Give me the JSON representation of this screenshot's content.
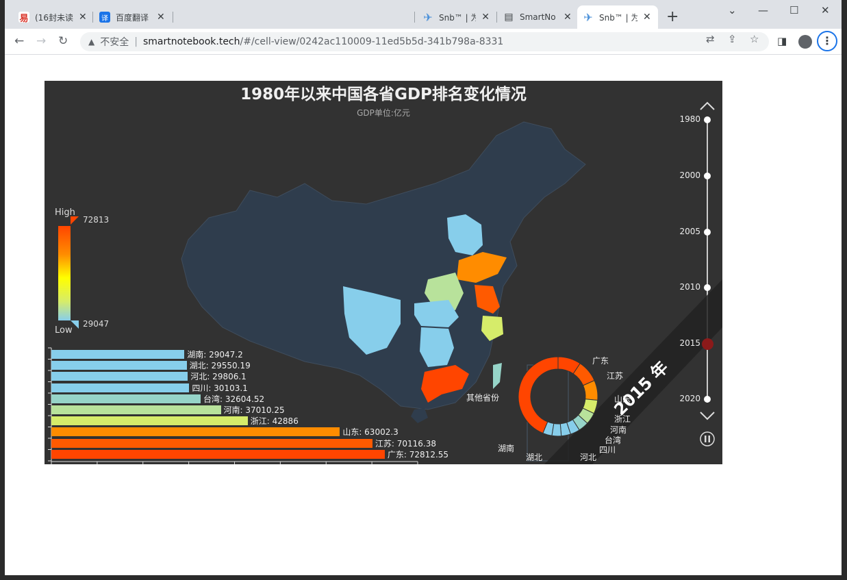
{
  "browser": {
    "tabs": [
      {
        "title": "(16封未读",
        "icon": "mail-icon",
        "color": "#d93025",
        "glyph": "易"
      },
      {
        "title": "百度翻译",
        "icon": "translate-icon",
        "color": "#1a73e8",
        "glyph": "译"
      },
      {
        "title": "Snb™ | 为",
        "icon": "snb-icon",
        "color": "#4a90d9",
        "glyph": "~"
      },
      {
        "title": "SmartNo",
        "icon": "book-icon",
        "color": "#3c4043",
        "glyph": "📖"
      },
      {
        "title": "Snb™ | 为",
        "icon": "snb-icon",
        "color": "#4a90d9",
        "glyph": "~"
      }
    ],
    "address": {
      "insecure_label": "不安全",
      "host": "smartnotebook.tech",
      "path": "/#/cell-view/0242ac110009-11ed5b5d-341b798a-8331"
    }
  },
  "chart_data": {
    "type": "bar",
    "title": "1980年以来中国各省GDP排名变化情况",
    "subtitle": "GDP单位:亿元",
    "current_year": "2015 年",
    "visual_map": {
      "high_label": "High",
      "low_label": "Low",
      "max": "72813",
      "min": "29047"
    },
    "timeline": [
      "1980",
      "2000",
      "2005",
      "2010",
      "2015",
      "2020"
    ],
    "timeline_current": "2015",
    "categories": [
      "湖南",
      "湖北",
      "河北",
      "四川",
      "台湾",
      "河南",
      "浙江",
      "山东",
      "江苏",
      "广东"
    ],
    "values": [
      29047.2,
      29550.19,
      29806.1,
      30103.1,
      32604.52,
      37010.25,
      42886,
      63002.3,
      70116.38,
      72812.55
    ],
    "bar_labels": [
      "湖南: 29047.2",
      "湖北: 29550.19",
      "河北: 29806.1",
      "四川: 30103.1",
      "台湾: 32604.52",
      "河南: 37010.25",
      "浙江: 42886",
      "山东: 63002.3",
      "江苏: 70116.38",
      "广东: 72812.55"
    ],
    "bar_colors": [
      "#87ceeb",
      "#87ceeb",
      "#87ceeb",
      "#87ceeb",
      "#96d4c8",
      "#b8e29b",
      "#d6ec6a",
      "#ff8c00",
      "#ff5a00",
      "#ff4500"
    ],
    "pie": {
      "labels": [
        "广东",
        "江苏",
        "山东",
        "浙江",
        "河南",
        "台湾",
        "四川",
        "河北",
        "湖北",
        "湖南",
        "其他省份"
      ]
    }
  }
}
